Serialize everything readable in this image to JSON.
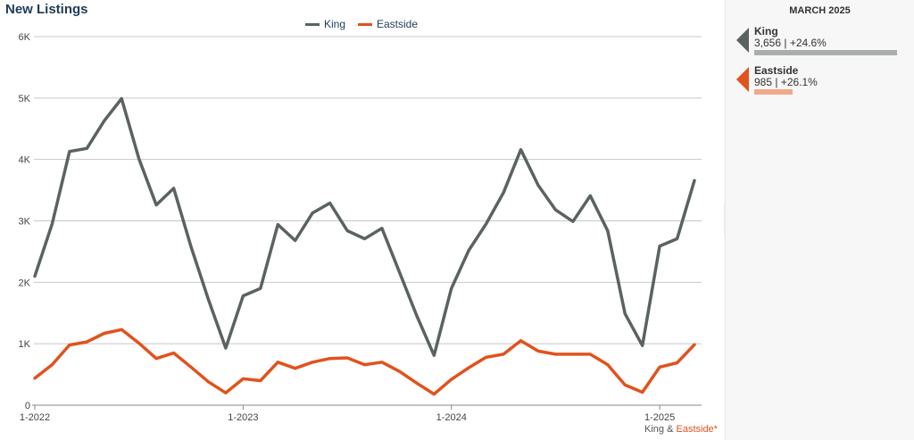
{
  "title": "New Listings",
  "legend": {
    "king": "King",
    "eastside": "Eastside"
  },
  "source": {
    "king": "King",
    "amp": " & ",
    "eastside": "Eastside*"
  },
  "side_panel": {
    "header": "MARCH 2025",
    "items": [
      {
        "name": "King",
        "value": "3,656 | +24.6%",
        "level": 3656
      },
      {
        "name": "Eastside",
        "value": "985 | +26.1%",
        "level": 985
      }
    ]
  },
  "colors": {
    "king": "#5a6360",
    "eastside": "#e1521d",
    "king_bar": "#a9adab",
    "eastside_bar": "#f0a98a"
  },
  "icons": {
    "toggle": "play-arrow-icon"
  },
  "chart_data": {
    "type": "line",
    "title": "New Listings",
    "xlabel": "",
    "ylabel": "",
    "y_ticks": [
      "6K",
      "5K",
      "4K",
      "3K",
      "2K",
      "1K",
      "0"
    ],
    "y_tick_values": [
      6000,
      5000,
      4000,
      3000,
      2000,
      1000,
      0
    ],
    "ylim": [
      0,
      6000
    ],
    "x_ticks": [
      "1-2022",
      "1-2023",
      "1-2024",
      "1-2025"
    ],
    "x_tick_index": [
      0,
      12,
      24,
      36
    ],
    "x": [
      "1-2022",
      "2-2022",
      "3-2022",
      "4-2022",
      "5-2022",
      "6-2022",
      "7-2022",
      "8-2022",
      "9-2022",
      "10-2022",
      "11-2022",
      "12-2022",
      "1-2023",
      "2-2023",
      "3-2023",
      "4-2023",
      "5-2023",
      "6-2023",
      "7-2023",
      "8-2023",
      "9-2023",
      "10-2023",
      "11-2023",
      "12-2023",
      "1-2024",
      "2-2024",
      "3-2024",
      "4-2024",
      "5-2024",
      "6-2024",
      "7-2024",
      "8-2024",
      "9-2024",
      "10-2024",
      "11-2024",
      "12-2024",
      "1-2025",
      "2-2025",
      "3-2025"
    ],
    "grid": true,
    "legend_position": "top-center",
    "series": [
      {
        "name": "King",
        "values": [
          2100,
          2950,
          4130,
          4180,
          4630,
          4990,
          4010,
          3260,
          3530,
          2580,
          1720,
          930,
          1780,
          1900,
          2940,
          2680,
          3130,
          3290,
          2840,
          2710,
          2880,
          2170,
          1460,
          810,
          1900,
          2520,
          2950,
          3460,
          4160,
          3580,
          3180,
          2990,
          3410,
          2840,
          1490,
          970,
          2590,
          2710,
          3656
        ]
      },
      {
        "name": "Eastside",
        "values": [
          440,
          660,
          980,
          1030,
          1170,
          1230,
          1010,
          760,
          850,
          620,
          380,
          200,
          430,
          400,
          700,
          600,
          700,
          760,
          770,
          660,
          700,
          550,
          360,
          180,
          420,
          610,
          780,
          830,
          1050,
          880,
          830,
          830,
          830,
          660,
          330,
          210,
          620,
          690,
          985
        ]
      }
    ]
  }
}
